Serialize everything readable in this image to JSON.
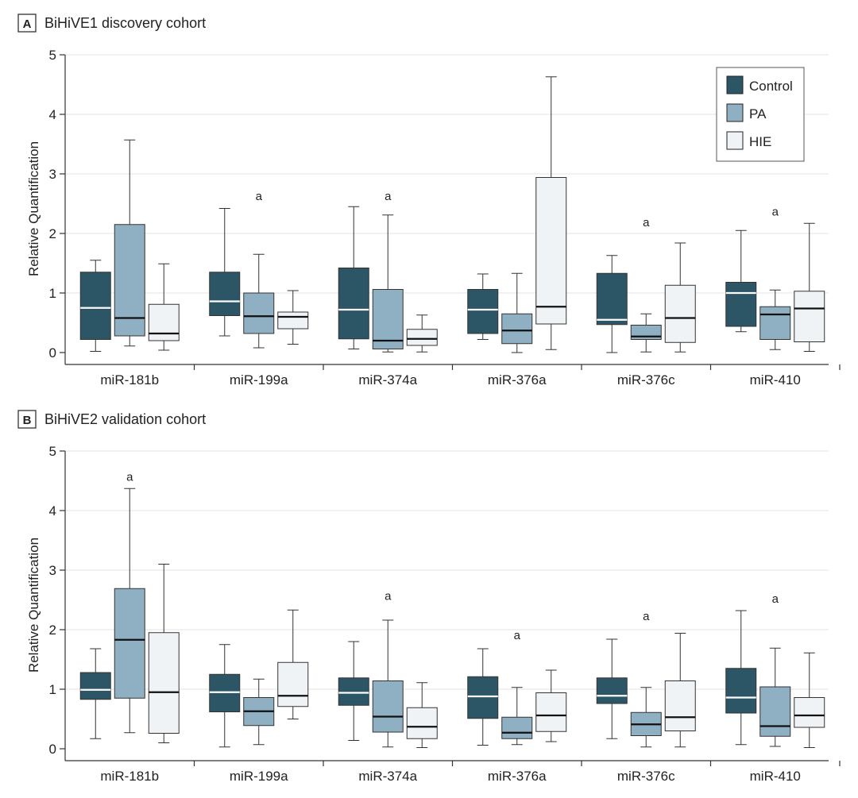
{
  "figure": {
    "panels": [
      {
        "letter": "A",
        "title": "BiHiVE1 discovery cohort"
      },
      {
        "letter": "B",
        "title": "BiHiVE2 validation cohort"
      }
    ],
    "ylabel": "Relative Quantification",
    "legend": [
      {
        "name": "Control",
        "color": "#2c5566"
      },
      {
        "name": "PA",
        "color": "#8fb0c2"
      },
      {
        "name": "HIE",
        "color": "#f0f3f6"
      }
    ],
    "significance_marker": "a"
  },
  "chart_data": [
    {
      "type": "box",
      "title": "BiHiVE1 discovery cohort",
      "ylabel": "Relative Quantification",
      "xlabel": "",
      "ylim": [
        0,
        5
      ],
      "yticks": [
        0,
        1,
        2,
        3,
        4,
        5
      ],
      "categories": [
        "miR-181b",
        "miR-199a",
        "miR-374a",
        "miR-376a",
        "miR-376c",
        "miR-410"
      ],
      "series": [
        {
          "name": "Control",
          "boxes": [
            {
              "min": 0.02,
              "q1": 0.22,
              "median": 0.75,
              "q3": 1.35,
              "max": 1.55
            },
            {
              "min": 0.28,
              "q1": 0.62,
              "median": 0.86,
              "q3": 1.35,
              "max": 2.42
            },
            {
              "min": 0.06,
              "q1": 0.23,
              "median": 0.72,
              "q3": 1.42,
              "max": 2.45
            },
            {
              "min": 0.22,
              "q1": 0.32,
              "median": 0.72,
              "q3": 1.06,
              "max": 1.32
            },
            {
              "min": 0.0,
              "q1": 0.47,
              "median": 0.55,
              "q3": 1.33,
              "max": 1.63
            },
            {
              "min": 0.35,
              "q1": 0.44,
              "median": 1.0,
              "q3": 1.18,
              "max": 2.05
            }
          ]
        },
        {
          "name": "PA",
          "boxes": [
            {
              "min": 0.11,
              "q1": 0.28,
              "median": 0.58,
              "q3": 2.15,
              "max": 3.57
            },
            {
              "min": 0.08,
              "q1": 0.32,
              "median": 0.61,
              "q3": 1.0,
              "max": 1.65
            },
            {
              "min": 0.01,
              "q1": 0.06,
              "median": 0.2,
              "q3": 1.06,
              "max": 2.31
            },
            {
              "min": 0.0,
              "q1": 0.15,
              "median": 0.37,
              "q3": 0.65,
              "max": 1.33
            },
            {
              "min": 0.01,
              "q1": 0.22,
              "median": 0.27,
              "q3": 0.46,
              "max": 0.65
            },
            {
              "min": 0.05,
              "q1": 0.22,
              "median": 0.64,
              "q3": 0.77,
              "max": 1.05
            }
          ]
        },
        {
          "name": "HIE",
          "boxes": [
            {
              "min": 0.04,
              "q1": 0.2,
              "median": 0.32,
              "q3": 0.81,
              "max": 1.49
            },
            {
              "min": 0.14,
              "q1": 0.4,
              "median": 0.6,
              "q3": 0.68,
              "max": 1.04
            },
            {
              "min": 0.01,
              "q1": 0.12,
              "median": 0.23,
              "q3": 0.39,
              "max": 0.63
            },
            {
              "min": 0.05,
              "q1": 0.48,
              "median": 0.77,
              "q3": 2.94,
              "max": 4.63
            },
            {
              "min": 0.01,
              "q1": 0.17,
              "median": 0.58,
              "q3": 1.13,
              "max": 1.84
            },
            {
              "min": 0.02,
              "q1": 0.18,
              "median": 0.74,
              "q3": 1.03,
              "max": 2.17
            }
          ]
        }
      ],
      "annotations": [
        {
          "category": "miR-199a",
          "text": "a",
          "y": 2.63
        },
        {
          "category": "miR-374a",
          "text": "a",
          "y": 2.63
        },
        {
          "category": "miR-376c",
          "text": "a",
          "y": 2.19
        },
        {
          "category": "miR-410",
          "text": "a",
          "y": 2.37
        }
      ],
      "legend_position": "top-right",
      "grid": true
    },
    {
      "type": "box",
      "title": "BiHiVE2 validation cohort",
      "ylabel": "Relative Quantification",
      "xlabel": "",
      "ylim": [
        0,
        5
      ],
      "yticks": [
        0,
        1,
        2,
        3,
        4,
        5
      ],
      "categories": [
        "miR-181b",
        "miR-199a",
        "miR-374a",
        "miR-376a",
        "miR-376c",
        "miR-410"
      ],
      "series": [
        {
          "name": "Control",
          "boxes": [
            {
              "min": 0.17,
              "q1": 0.83,
              "median": 0.99,
              "q3": 1.28,
              "max": 1.68
            },
            {
              "min": 0.03,
              "q1": 0.62,
              "median": 0.95,
              "q3": 1.25,
              "max": 1.75
            },
            {
              "min": 0.14,
              "q1": 0.73,
              "median": 0.94,
              "q3": 1.19,
              "max": 1.8
            },
            {
              "min": 0.06,
              "q1": 0.51,
              "median": 0.88,
              "q3": 1.21,
              "max": 1.68
            },
            {
              "min": 0.17,
              "q1": 0.76,
              "median": 0.89,
              "q3": 1.19,
              "max": 1.84
            },
            {
              "min": 0.07,
              "q1": 0.6,
              "median": 0.86,
              "q3": 1.35,
              "max": 2.32
            }
          ]
        },
        {
          "name": "PA",
          "boxes": [
            {
              "min": 0.27,
              "q1": 0.85,
              "median": 1.83,
              "q3": 2.69,
              "max": 4.37
            },
            {
              "min": 0.07,
              "q1": 0.39,
              "median": 0.63,
              "q3": 0.86,
              "max": 1.17
            },
            {
              "min": 0.03,
              "q1": 0.28,
              "median": 0.54,
              "q3": 1.14,
              "max": 2.16
            },
            {
              "min": 0.07,
              "q1": 0.17,
              "median": 0.27,
              "q3": 0.53,
              "max": 1.03
            },
            {
              "min": 0.03,
              "q1": 0.22,
              "median": 0.41,
              "q3": 0.61,
              "max": 1.03
            },
            {
              "min": 0.04,
              "q1": 0.21,
              "median": 0.38,
              "q3": 1.04,
              "max": 1.69
            }
          ]
        },
        {
          "name": "HIE",
          "boxes": [
            {
              "min": 0.1,
              "q1": 0.26,
              "median": 0.95,
              "q3": 1.95,
              "max": 3.1
            },
            {
              "min": 0.5,
              "q1": 0.71,
              "median": 0.89,
              "q3": 1.45,
              "max": 2.33
            },
            {
              "min": 0.02,
              "q1": 0.17,
              "median": 0.37,
              "q3": 0.69,
              "max": 1.11
            },
            {
              "min": 0.12,
              "q1": 0.29,
              "median": 0.56,
              "q3": 0.94,
              "max": 1.32
            },
            {
              "min": 0.03,
              "q1": 0.3,
              "median": 0.53,
              "q3": 1.14,
              "max": 1.94
            },
            {
              "min": 0.02,
              "q1": 0.36,
              "median": 0.56,
              "q3": 0.86,
              "max": 1.61
            }
          ]
        }
      ],
      "annotations": [
        {
          "category": "miR-181b",
          "text": "a",
          "y": 4.57
        },
        {
          "category": "miR-374a",
          "text": "a",
          "y": 2.57
        },
        {
          "category": "miR-376a",
          "text": "a",
          "y": 1.91
        },
        {
          "category": "miR-376c",
          "text": "a",
          "y": 2.23
        },
        {
          "category": "miR-410",
          "text": "a",
          "y": 2.52
        }
      ],
      "legend_position": "none",
      "grid": true
    }
  ]
}
